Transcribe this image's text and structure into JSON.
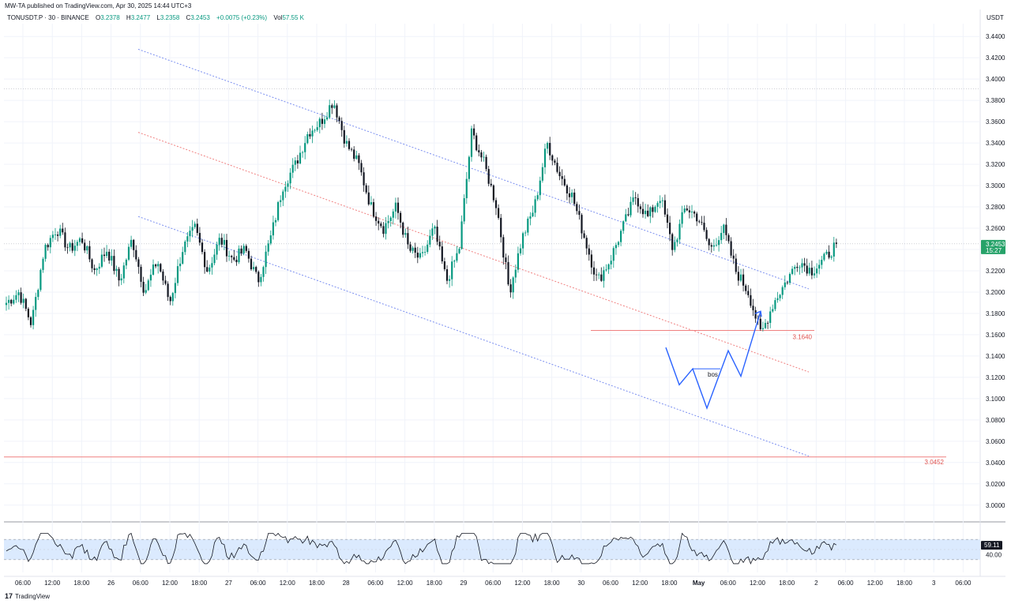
{
  "header": {
    "published": "MW-TA published on TradingView.com, Apr 30, 2025 14:44 UTC+3",
    "symbol": "TONUSDT.P · 30 · BINANCE",
    "ohlc": {
      "o_label": "O",
      "o_value": "3.2378",
      "h_label": "H",
      "h_value": "3.2477",
      "l_label": "L",
      "l_value": "3.2358",
      "c_label": "C",
      "c_value": "3.2453",
      "change": "+0.0075 (+0.23%)",
      "vol_label": "Vol",
      "vol_value": "57.55 K"
    }
  },
  "footer": {
    "brand": "TradingView",
    "logo_glyph": "17"
  },
  "colors": {
    "up": "#089981",
    "down": "#131722",
    "channel": "#7b8ff0",
    "mid": "#f08080",
    "level": "#f08080",
    "projection": "#2962ff",
    "rsi_band": "#dbeafe",
    "price_tag": "#26a269"
  },
  "chart_data": [
    {
      "type": "candlestick",
      "currency": "USDT",
      "currency_label": "USDT",
      "ylim": [
        2.985,
        3.452
      ],
      "y_ticks": [
        "3.4400",
        "3.4200",
        "3.4000",
        "3.3800",
        "3.3600",
        "3.3400",
        "3.3200",
        "3.3000",
        "3.2800",
        "3.2600",
        "3.2400",
        "3.2200",
        "3.2000",
        "3.1800",
        "3.1600",
        "3.1400",
        "3.1200",
        "3.1000",
        "3.0800",
        "3.0600",
        "3.0400",
        "3.0200",
        "3.0000"
      ],
      "x_ticks": [
        "06:00",
        "12:00",
        "18:00",
        "26",
        "06:00",
        "12:00",
        "18:00",
        "27",
        "06:00",
        "12:00",
        "18:00",
        "28",
        "06:00",
        "12:00",
        "18:00",
        "29",
        "06:00",
        "12:00",
        "18:00",
        "30",
        "06:00",
        "12:00",
        "18:00",
        "May",
        "06:00",
        "12:00",
        "18:00",
        "2",
        "06:00",
        "12:00",
        "18:00",
        "3",
        "06:00"
      ],
      "x_bold": [
        "May"
      ],
      "close_path": [
        3.19,
        3.2,
        3.17,
        3.24,
        3.26,
        3.24,
        3.25,
        3.22,
        3.24,
        3.21,
        3.25,
        3.2,
        3.23,
        3.19,
        3.24,
        3.26,
        3.22,
        3.25,
        3.23,
        3.24,
        3.21,
        3.25,
        3.3,
        3.32,
        3.35,
        3.36,
        3.38,
        3.34,
        3.32,
        3.28,
        3.26,
        3.28,
        3.24,
        3.23,
        3.26,
        3.21,
        3.24,
        3.35,
        3.32,
        3.28,
        3.2,
        3.25,
        3.28,
        3.34,
        3.31,
        3.29,
        3.25,
        3.21,
        3.23,
        3.26,
        3.29,
        3.27,
        3.29,
        3.24,
        3.28,
        3.27,
        3.24,
        3.26,
        3.22,
        3.2,
        3.16,
        3.19,
        3.21,
        3.23,
        3.22,
        3.23,
        3.2453
      ],
      "current_price": "3.2453",
      "countdown": "15:27",
      "levels": [
        {
          "value": 3.164,
          "label": "3.1640"
        },
        {
          "value": 3.0452,
          "label": "3.0452"
        }
      ],
      "annotations": [
        {
          "text": "bos"
        }
      ],
      "projection_path": [
        3.148,
        3.113,
        3.128,
        3.091,
        3.145,
        3.121,
        3.182
      ]
    },
    {
      "type": "line",
      "indicator": "RSI",
      "ylim": [
        0,
        100
      ],
      "band": [
        30,
        70
      ],
      "y_ticks": [
        "40.00"
      ],
      "current_value": "59.11"
    }
  ]
}
